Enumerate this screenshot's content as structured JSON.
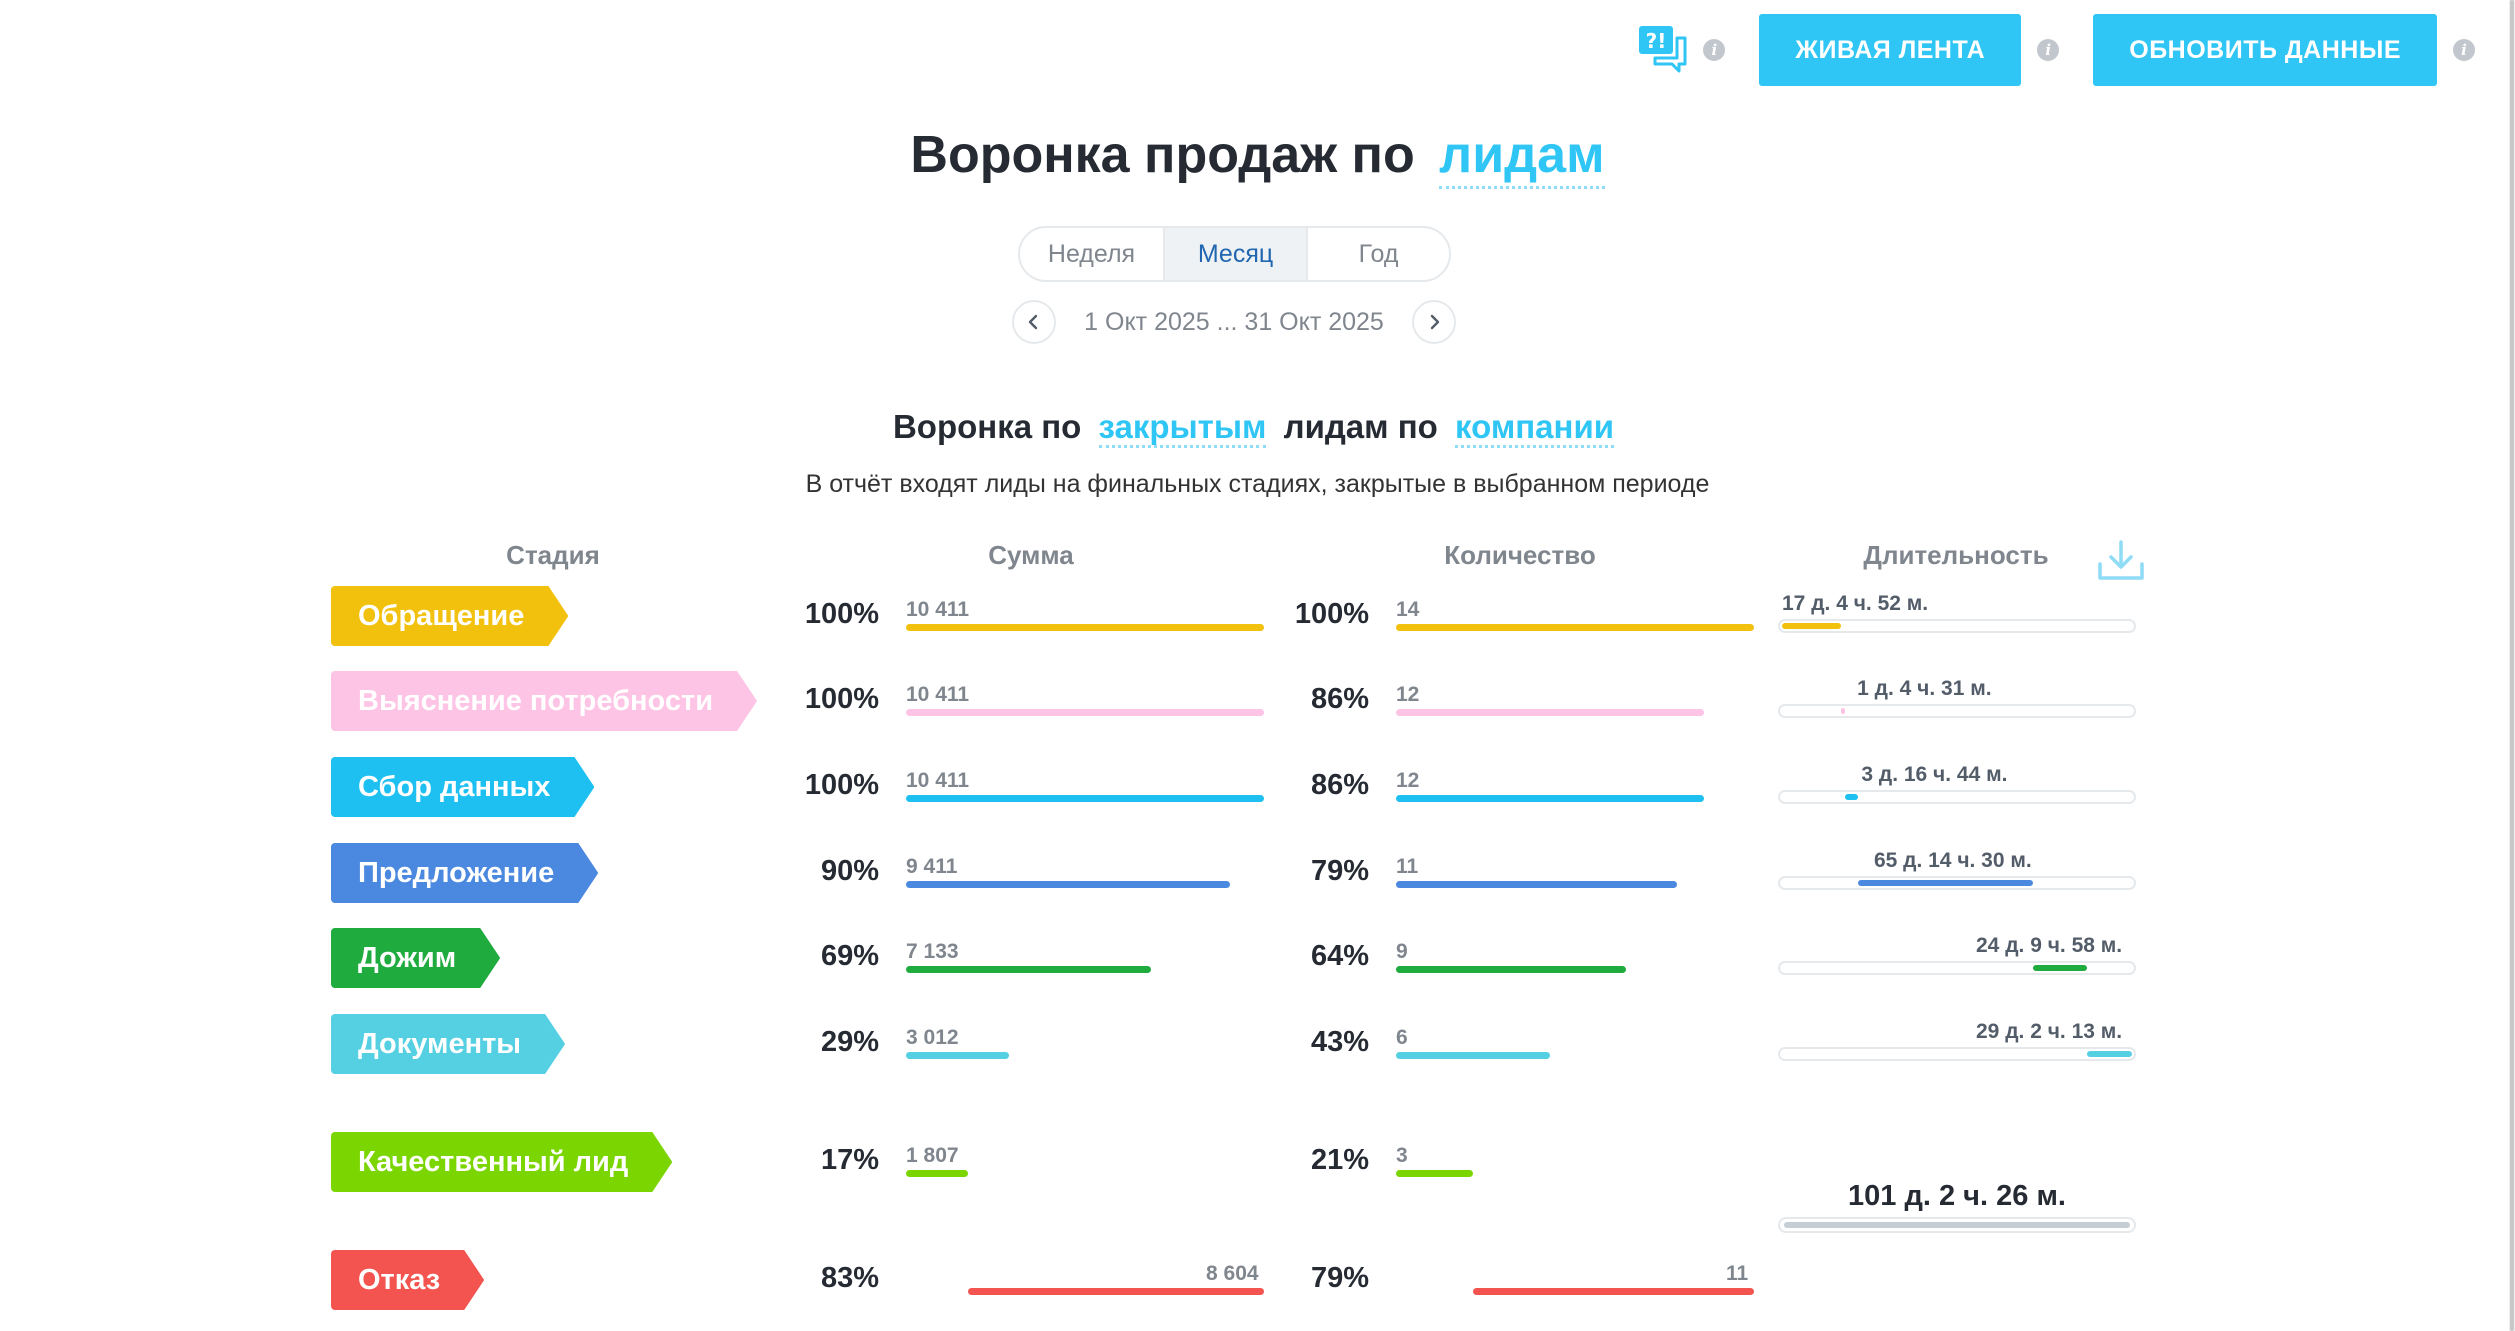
{
  "toolbar": {
    "live_label": "ЖИВАЯ ЛЕНТА",
    "refresh_label": "ОБНОВИТЬ ДАННЫЕ",
    "icons": [
      "feedback-chat-icon",
      "info-icon",
      "info-icon",
      "info-icon"
    ]
  },
  "title": {
    "prefix": "Воронка продаж по",
    "link": "лидам"
  },
  "period": {
    "options": [
      "Неделя",
      "Месяц",
      "Год"
    ],
    "selected": "Месяц"
  },
  "range": {
    "text": "1 Окт 2025 ... 31 Окт 2025"
  },
  "subtitle": {
    "part1": "Воронка по",
    "link1": "закрытым",
    "part2": "лидам по",
    "link2": "компании"
  },
  "note": "В отчёт входят лиды на финальных стадиях, закрытые в выбранном периоде",
  "headers": {
    "stage": "Стадия",
    "sum": "Сумма",
    "count": "Количество",
    "duration": "Длительность"
  },
  "colors": {
    "accent": "#2fc6f6",
    "muted": "#80868e"
  },
  "stages": [
    {
      "name": "Обращение",
      "color": "#f1c10e",
      "sum_pct": "100%",
      "sum": "10 411",
      "sum_ratio": 1.0,
      "cnt_pct": "100%",
      "cnt": "14",
      "cnt_ratio": 1.0,
      "duration": "17 д. 4 ч. 52 м.",
      "dur_start": 0.0,
      "dur_ratio": 0.169
    },
    {
      "name": "Выяснение потребности",
      "color": "#fec4e5",
      "sum_pct": "100%",
      "sum": "10 411",
      "sum_ratio": 1.0,
      "cnt_pct": "86%",
      "cnt": "12",
      "cnt_ratio": 0.86,
      "duration": "1 д. 4 ч. 31 м.",
      "dur_start": 0.169,
      "dur_ratio": 0.012
    },
    {
      "name": "Сбор данных",
      "color": "#1ec0f2",
      "sum_pct": "100%",
      "sum": "10 411",
      "sum_ratio": 1.0,
      "cnt_pct": "86%",
      "cnt": "12",
      "cnt_ratio": 0.86,
      "duration": "3 д. 16 ч. 44 м.",
      "dur_start": 0.181,
      "dur_ratio": 0.036
    },
    {
      "name": "Предложение",
      "color": "#4b88df",
      "sum_pct": "90%",
      "sum": "9 411",
      "sum_ratio": 0.904,
      "cnt_pct": "79%",
      "cnt": "11",
      "cnt_ratio": 0.786,
      "duration": "65 д. 14 ч. 30 м.",
      "dur_start": 0.217,
      "dur_ratio": 0.5
    },
    {
      "name": "Дожим",
      "color": "#1fab3e",
      "sum_pct": "69%",
      "sum": "7 133",
      "sum_ratio": 0.685,
      "cnt_pct": "64%",
      "cnt": "9",
      "cnt_ratio": 0.643,
      "duration": "24 д. 9 ч. 58 м.",
      "dur_start": 0.717,
      "dur_ratio": 0.155
    },
    {
      "name": "Документы",
      "color": "#55d0e2",
      "sum_pct": "29%",
      "sum": "3 012",
      "sum_ratio": 0.289,
      "cnt_pct": "43%",
      "cnt": "6",
      "cnt_ratio": 0.429,
      "duration": "29 д. 2 ч. 13 м.",
      "dur_start": 0.872,
      "dur_ratio": 0.128
    }
  ],
  "finals": [
    {
      "name": "Качественный лид",
      "color": "#7bd500",
      "sum_pct": "17%",
      "sum": "1 807",
      "sum_ratio": 0.174,
      "cnt_pct": "21%",
      "cnt": "3",
      "cnt_ratio": 0.214,
      "align": "left"
    },
    {
      "name": "Отказ",
      "color": "#f3544f",
      "sum_pct": "83%",
      "sum": "8 604",
      "sum_ratio": 0.826,
      "cnt_pct": "79%",
      "cnt": "11",
      "cnt_ratio": 0.786,
      "align": "right"
    }
  ],
  "total_duration": "101 д. 2 ч. 26 м."
}
